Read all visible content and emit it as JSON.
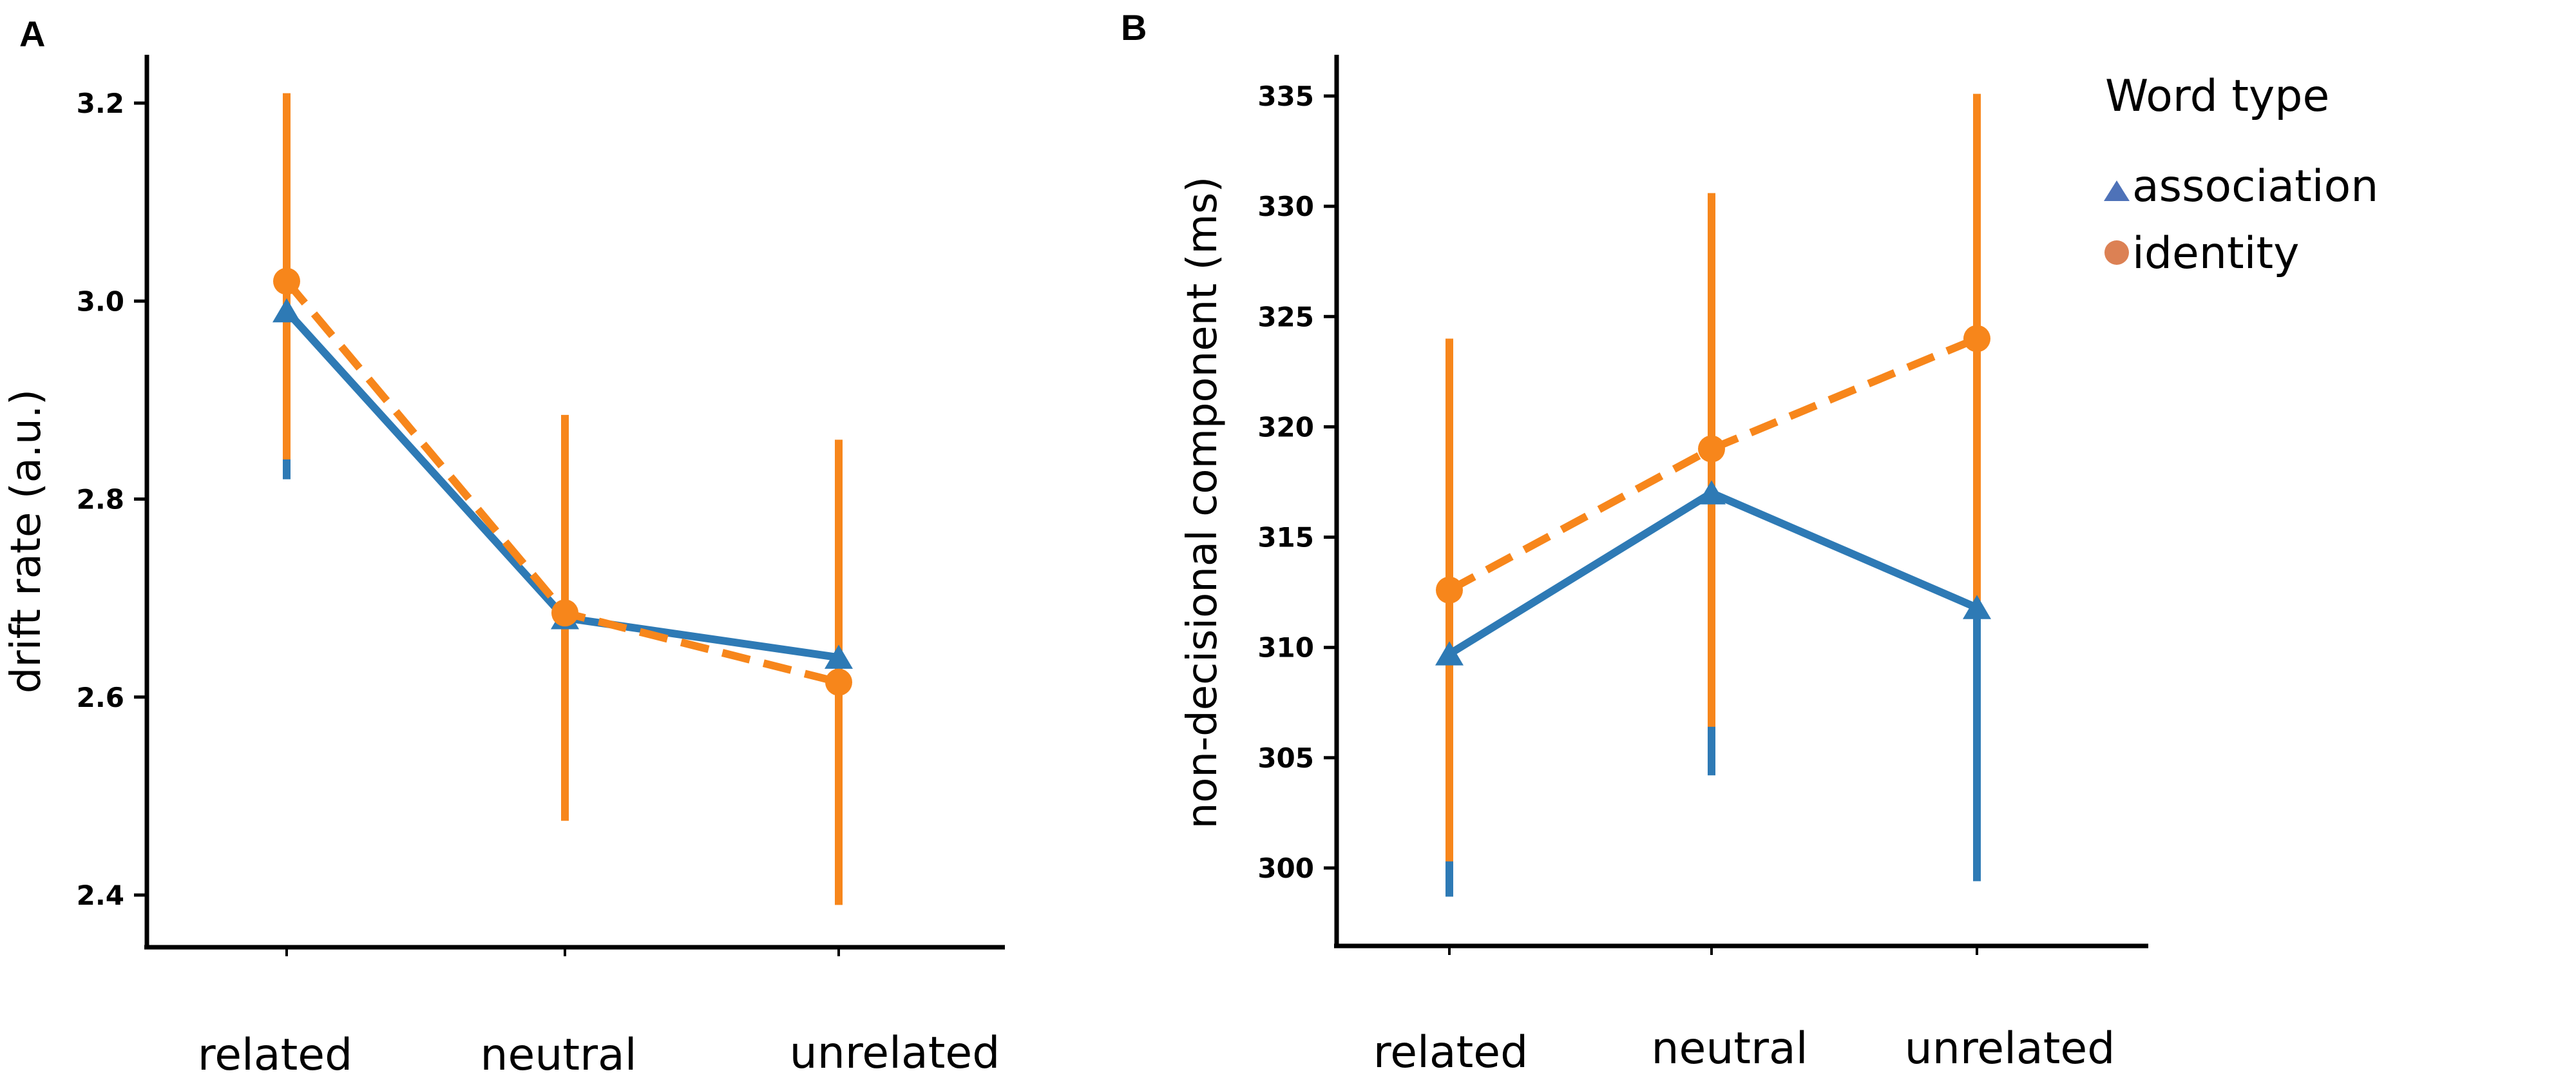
{
  "chart_data": [
    {
      "panel": "A",
      "type": "line",
      "categories": [
        "related",
        "neutral",
        "unrelated"
      ],
      "ylabel": "drift rate (a.u.)",
      "yticks": [
        "2.4",
        "2.6",
        "2.8",
        "3.0",
        "3.2"
      ],
      "ylim": [
        2.35,
        3.25
      ],
      "series": [
        {
          "name": "association",
          "color": "#2e7ab5",
          "marker": "triangle",
          "dash": false,
          "values": [
            2.99,
            2.68,
            2.64
          ],
          "err_low": [
            2.82,
            2.68,
            2.64
          ],
          "err_high": [
            2.99,
            2.68,
            2.64
          ]
        },
        {
          "name": "identity",
          "color": "#f7861b",
          "marker": "circle",
          "dash": true,
          "values": [
            3.02,
            2.685,
            2.615
          ],
          "err_low": [
            2.84,
            2.475,
            2.39
          ],
          "err_high": [
            3.21,
            2.885,
            2.86
          ]
        }
      ]
    },
    {
      "panel": "B",
      "type": "line",
      "categories": [
        "related",
        "neutral",
        "unrelated"
      ],
      "ylabel": "non-decisional component (ms)",
      "yticks": [
        "300",
        "305",
        "310",
        "315",
        "320",
        "325",
        "330",
        "335"
      ],
      "ylim": [
        297,
        337
      ],
      "series": [
        {
          "name": "association",
          "color": "#2e7ab5",
          "marker": "triangle",
          "dash": false,
          "values": [
            309.7,
            317.0,
            311.8
          ],
          "err_low": [
            298.7,
            304.2,
            299.4
          ],
          "err_high": [
            309.7,
            317.0,
            311.8
          ]
        },
        {
          "name": "identity",
          "color": "#f7861b",
          "marker": "circle",
          "dash": true,
          "values": [
            312.6,
            319.0,
            324.0
          ],
          "err_low": [
            300.3,
            306.4,
            312.0
          ],
          "err_high": [
            324.0,
            330.6,
            335.1
          ]
        }
      ]
    }
  ],
  "legend": {
    "title": "Word type",
    "items": [
      {
        "label": "association",
        "color": "#4e72b8",
        "marker": "triangle"
      },
      {
        "label": "identity",
        "color": "#dc8154",
        "marker": "circle"
      }
    ]
  }
}
